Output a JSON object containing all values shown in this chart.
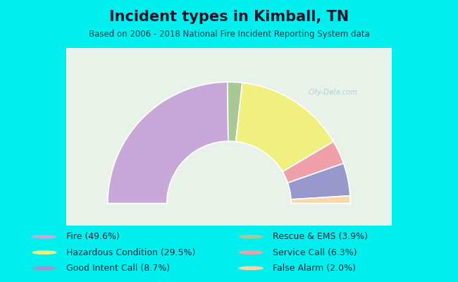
{
  "title": "Incident types in Kimball, TN",
  "subtitle": "Based on 2006 - 2018 National Fire Incident Reporting System data",
  "background_color": "#00EFEF",
  "chart_bg_color": "#e8f2e8",
  "segments": [
    {
      "label": "Fire",
      "pct": 49.6,
      "color": "#c8a8d8"
    },
    {
      "label": "Rescue & EMS",
      "pct": 3.9,
      "color": "#aac896"
    },
    {
      "label": "Hazardous Condition",
      "pct": 29.5,
      "color": "#f0f080"
    },
    {
      "label": "Service Call",
      "pct": 6.3,
      "color": "#f0a0a8"
    },
    {
      "label": "Good Intent Call",
      "pct": 8.7,
      "color": "#9898cc"
    },
    {
      "label": "False Alarm",
      "pct": 2.0,
      "color": "#f8d8a8"
    }
  ],
  "legend_left": [
    {
      "text": "Fire (49.6%)",
      "color": "#c8a8d8"
    },
    {
      "text": "Hazardous Condition (29.5%)",
      "color": "#f0f080"
    },
    {
      "text": "Good Intent Call (8.7%)",
      "color": "#9898cc"
    }
  ],
  "legend_right": [
    {
      "text": "Rescue & EMS (3.9%)",
      "color": "#aac896"
    },
    {
      "text": "Service Call (6.3%)",
      "color": "#f0a0a8"
    },
    {
      "text": "False Alarm (2.0%)",
      "color": "#f8d8a8"
    }
  ],
  "title_fontsize": 15,
  "subtitle_fontsize": 8.5,
  "legend_fontsize": 9,
  "title_color": "#1a1a2e",
  "subtitle_color": "#2a3a4a",
  "legend_color": "#1a2a3a",
  "outer_r": 0.82,
  "inner_r": 0.42
}
